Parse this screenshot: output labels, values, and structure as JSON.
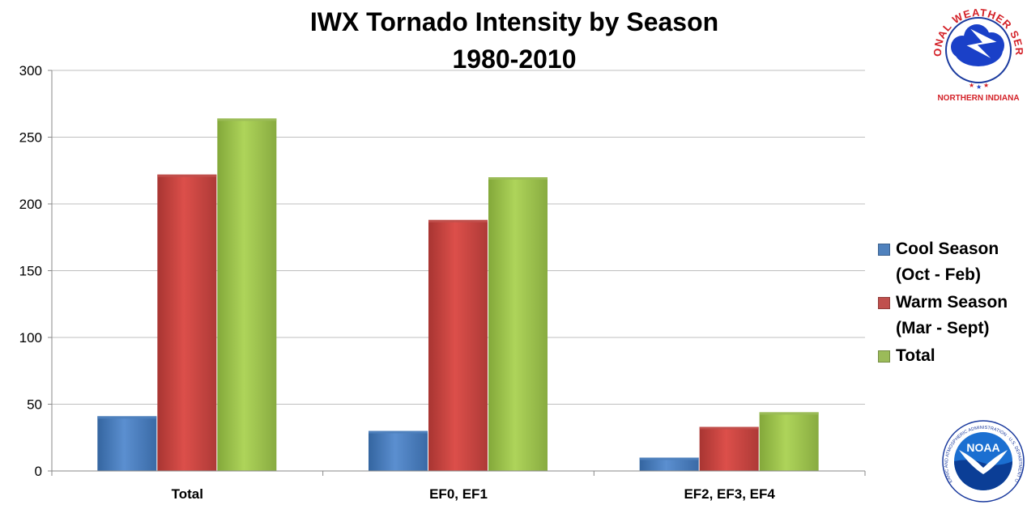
{
  "title_line1": "IWX Tornado Intensity by Season",
  "title_line2": "1980-2010",
  "chart_data": {
    "type": "bar",
    "title": "IWX Tornado Intensity by Season 1980-2010",
    "categories": [
      "Total",
      "EF0, EF1",
      "EF2, EF3, EF4"
    ],
    "series": [
      {
        "name": "Cool Season\n(Oct - Feb)",
        "color": "#4f81bd",
        "values": [
          41,
          30,
          10
        ]
      },
      {
        "name": "Warm Season\n(Mar - Sept)",
        "color": "#c0504d",
        "values": [
          222,
          188,
          33
        ]
      },
      {
        "name": "Total",
        "color": "#9bbb59",
        "values": [
          264,
          220,
          44
        ]
      }
    ],
    "ylim": [
      0,
      300
    ],
    "yticks": [
      0,
      50,
      100,
      150,
      200,
      250,
      300
    ],
    "grid": true,
    "legend": "right"
  },
  "logos": {
    "nws_text": "NATIONAL WEATHER SERVICE",
    "nws_caption": "NORTHERN INDIANA",
    "noaa_text": "NOAA",
    "noaa_ring_text": "NATIONAL OCEANIC AND ATMOSPHERIC ADMINISTRATION · U.S. DEPARTMENT OF COMMERCE"
  }
}
